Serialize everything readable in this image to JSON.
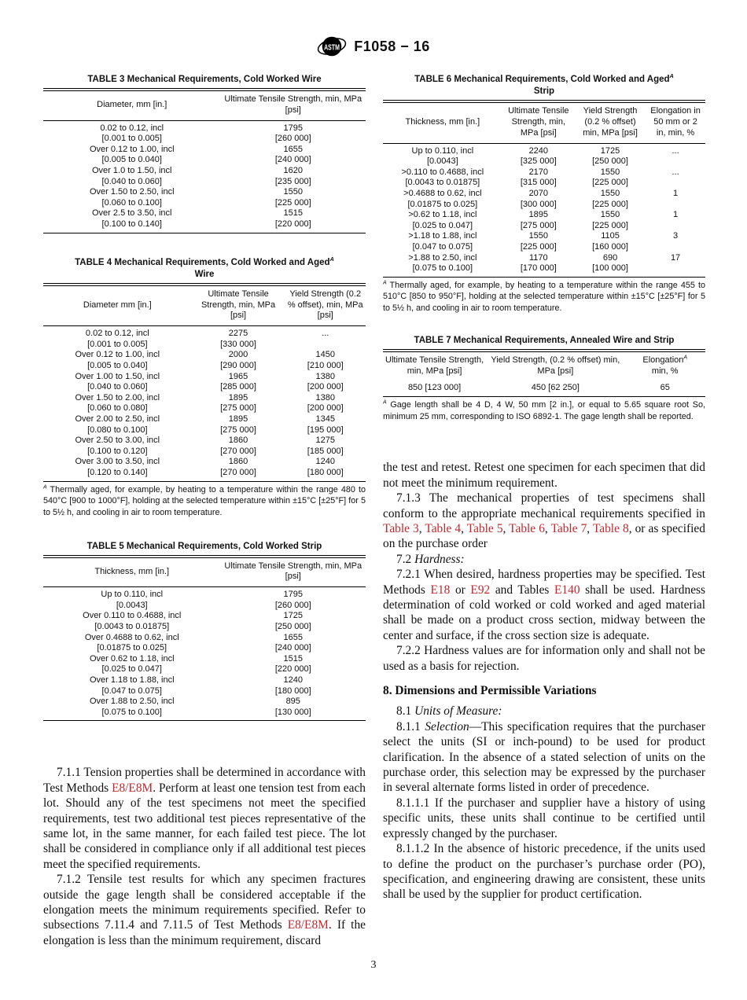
{
  "header": {
    "doc_code": "F1058 − 16"
  },
  "page_number": "3",
  "colors": {
    "link_red": "#c0282d",
    "text": "#111111"
  },
  "tables": {
    "table3": {
      "title": [
        {
          "t": "TABLE 3 Mechanical Requirements, Cold Worked Wire"
        }
      ],
      "widths": [
        "55%",
        "45%"
      ],
      "headers": [
        "Diameter, mm [in.]",
        "Ultimate Tensile Strength, min, MPa [psi]"
      ],
      "rows": [
        [
          "0.02 to 0.12, incl",
          "1795"
        ],
        [
          "[0.001 to 0.005]",
          "[260 000]"
        ],
        [
          "Over 0.12 to 1.00, incl",
          "1655"
        ],
        [
          "[0.005 to 0.040]",
          "[240 000]"
        ],
        [
          "Over 1.0 to 1.50, incl",
          "1620"
        ],
        [
          "[0.040 to 0.060]",
          "[235 000]"
        ],
        [
          "Over 1.50 to 2.50, incl",
          "1550"
        ],
        [
          "[0.060 to 0.100]",
          "[225 000]"
        ],
        [
          "Over 2.5 to 3.50, incl",
          "1515"
        ],
        [
          "[0.100 to 0.140]",
          "[220 000]"
        ]
      ]
    },
    "table4": {
      "title": [
        {
          "t": "TABLE 4 Mechanical Requirements, Cold Worked and Aged"
        },
        {
          "t": "A",
          "s": "supi"
        },
        {
          "br": true
        },
        {
          "t": "Wire"
        }
      ],
      "widths": [
        "46%",
        "29%",
        "25%"
      ],
      "headers": [
        "Diameter mm [in.]",
        "Ultimate Tensile Strength, min, MPa [psi]",
        "Yield Strength (0.2 % offset), min, MPa [psi]"
      ],
      "rows": [
        [
          "0.02 to 0.12, incl",
          "2275",
          "..."
        ],
        [
          "[0.001 to 0.005]",
          "[330 000]",
          ""
        ],
        [
          "Over 0.12 to 1.00, incl",
          "2000",
          "1450"
        ],
        [
          "[0.005 to 0.040]",
          "[290 000]",
          "[210 000]"
        ],
        [
          "Over 1.00 to 1.50, incl",
          "1965",
          "1380"
        ],
        [
          "[0.040 to 0.060]",
          "[285 000]",
          "[200 000]"
        ],
        [
          "Over 1.50 to 2.00, incl",
          "1895",
          "1380"
        ],
        [
          "[0.060 to 0.080]",
          "[275 000]",
          "[200 000]"
        ],
        [
          "Over 2.00 to 2.50, incl",
          "1895",
          "1345"
        ],
        [
          "[0.080 to 0.100]",
          "[275 000]",
          "[195 000]"
        ],
        [
          "Over 2.50 to 3.00, incl",
          "1860",
          "1275"
        ],
        [
          "[0.100 to 0.120]",
          "[270 000]",
          "[185 000]"
        ],
        [
          "Over 3.00 to 3.50, incl",
          "1860",
          "1240"
        ],
        [
          "[0.120 to 0.140]",
          "[270 000]",
          "[180 000]"
        ]
      ],
      "footnote": [
        {
          "t": "A",
          "s": "supi"
        },
        {
          "t": " Thermally aged, for example, by heating to a temperature within the range 480 to 540°C [900 to 1000°F], holding at the selected temperature within ±15°C [±25°F] for 5 to 5½ h, and cooling in air to room temperature."
        }
      ]
    },
    "table5": {
      "title": [
        {
          "t": "TABLE 5 Mechanical Requirements, Cold Worked Strip"
        }
      ],
      "widths": [
        "55%",
        "45%"
      ],
      "headers": [
        "Thickness, mm [in.]",
        "Ultimate Tensile Strength, min, MPa [psi]"
      ],
      "rows": [
        [
          "Up to 0.110, incl",
          "1795"
        ],
        [
          "[0.0043]",
          "[260 000]"
        ],
        [
          "Over 0.110 to 0.4688, incl",
          "1725"
        ],
        [
          "[0.0043 to 0.01875]",
          "[250 000]"
        ],
        [
          "Over 0.4688 to 0.62, incl",
          "1655"
        ],
        [
          "[0.01875 to 0.025]",
          "[240 000]"
        ],
        [
          "Over 0.62 to 1.18, incl",
          "1515"
        ],
        [
          "[0.025 to 0.047]",
          "[220 000]"
        ],
        [
          "Over 1.18 to 1.88, incl",
          "1240"
        ],
        [
          "[0.047 to 0.075]",
          "[180 000]"
        ],
        [
          "Over 1.88 to 2.50, incl",
          "895"
        ],
        [
          "[0.075 to 0.100]",
          "[130 000]"
        ]
      ]
    },
    "table6": {
      "title": [
        {
          "t": "TABLE 6 Mechanical Requirements, Cold Worked and Aged"
        },
        {
          "t": "A",
          "s": "supi"
        },
        {
          "br": true
        },
        {
          "t": "Strip"
        }
      ],
      "widths": [
        "37%",
        "22.5%",
        "22%",
        "18.5%"
      ],
      "headers": [
        "Thickness, mm [in.]",
        "Ultimate Tensile Strength, min, MPa [psi]",
        "Yield Strength (0.2 % offset) min, MPa [psi]",
        "Elongation in 50 mm or 2 in, min, %"
      ],
      "rows": [
        [
          "Up to 0.110, incl",
          "2240",
          "1725",
          "..."
        ],
        [
          "[0.0043]",
          "[325 000]",
          "[250 000]",
          ""
        ],
        [
          ">0.110 to 0.4688, incl",
          "2170",
          "1550",
          "..."
        ],
        [
          "[0.0043 to 0.01875]",
          "[315 000]",
          "[225 000]",
          ""
        ],
        [
          ">0.4688 to 0.62, incl",
          "2070",
          "1550",
          "1"
        ],
        [
          "[0.01875 to 0.025]",
          "[300 000]",
          "[225 000]",
          ""
        ],
        [
          ">0.62 to 1.18, incl",
          "1895",
          "1550",
          "1"
        ],
        [
          "[0.025 to 0.047]",
          "[275 000]",
          "[225 000]",
          ""
        ],
        [
          ">1.18 to 1.88, incl",
          "1550",
          "1105",
          "3"
        ],
        [
          "[0.047 to 0.075]",
          "[225 000]",
          "[160 000]",
          ""
        ],
        [
          ">1.88 to 2.50, incl",
          "1170",
          "690",
          "17"
        ],
        [
          "[0.075 to 0.100]",
          "[170 000]",
          "[100 000]",
          ""
        ]
      ],
      "footnote": [
        {
          "t": "A",
          "s": "supi"
        },
        {
          "t": " Thermally aged, for example, by heating to a temperature within the range 455 to 510°C [850 to 950°F], holding at the selected temperature within ±15°C [±25°F] for 5 to 5½ h, and cooling in air to room temperature."
        }
      ]
    },
    "table7": {
      "title": [
        {
          "t": "TABLE 7 Mechanical Requirements, Annealed Wire and Strip"
        }
      ],
      "widths": [
        "32%",
        "43%",
        "25%"
      ],
      "headers": [
        "Ultimate Tensile Strength, min, MPa [psi]",
        "Yield Strength, (0.2 % offset) min, MPa [psi]",
        [
          {
            "t": "Elongation"
          },
          {
            "t": "A",
            "s": "supi"
          },
          {
            "br": true
          },
          {
            "t": "min, %"
          }
        ]
      ],
      "rows": [
        [
          "850 [123 000]",
          "450 [62 250]",
          "65"
        ]
      ],
      "footnote": [
        {
          "t": "A",
          "s": "supi"
        },
        {
          "t": " Gage length shall be 4 D, 4 W, 50 mm [2 in.], or equal to 5.65 square root So, minimum 25 mm, corresponding to ISO 6892-1. The gage length shall be reported."
        }
      ]
    }
  },
  "columns": {
    "left": {
      "paragraphs": [
        {
          "cls": "indent",
          "segs": [
            {
              "t": "7.1.1  Tension properties shall be determined in accordance with Test Methods "
            },
            {
              "t": "E8/E8M",
              "s": "link"
            },
            {
              "t": ". Perform at least one tension test from each lot. Should any of the test specimens not meet the specified requirements, test two additional test pieces representative of the same lot, in the same manner, for each failed test piece. The lot shall be considered in compliance only if all additional test pieces meet the specified requirements."
            }
          ]
        },
        {
          "cls": "indent",
          "segs": [
            {
              "t": "7.1.2  Tensile test results for which any specimen fractures outside the gage length shall be considered acceptable if the elongation meets the minimum requirements specified. Refer to subsections 7.11.4 and 7.11.5 of Test Methods "
            },
            {
              "t": "E8/E8M",
              "s": "link"
            },
            {
              "t": ". If the elongation is less than the minimum requirement, discard"
            }
          ]
        }
      ]
    },
    "right": {
      "paragraphs": [
        {
          "cls": "",
          "segs": [
            {
              "t": "the test and retest. Retest one specimen for each specimen that did not meet the minimum requirement."
            }
          ]
        },
        {
          "cls": "indent",
          "segs": [
            {
              "t": "7.1.3  The mechanical properties of test specimens shall conform to the appropriate mechanical requirements specified in "
            },
            {
              "t": "Table 3",
              "s": "link"
            },
            {
              "t": ", "
            },
            {
              "t": "Table 4",
              "s": "link"
            },
            {
              "t": ", "
            },
            {
              "t": "Table 5",
              "s": "link"
            },
            {
              "t": ", "
            },
            {
              "t": "Table 6",
              "s": "link"
            },
            {
              "t": ", "
            },
            {
              "t": "Table 7",
              "s": "link"
            },
            {
              "t": ", "
            },
            {
              "t": "Table 8",
              "s": "link"
            },
            {
              "t": ", or as specified on the purchase order"
            }
          ]
        },
        {
          "cls": "indent",
          "segs": [
            {
              "t": "7.2 "
            },
            {
              "t": "Hardness:",
              "s": "i"
            }
          ]
        },
        {
          "cls": "indent",
          "segs": [
            {
              "t": "7.2.1  When desired, hardness properties may be specified. Test Methods "
            },
            {
              "t": "E18",
              "s": "link"
            },
            {
              "t": " or "
            },
            {
              "t": "E92",
              "s": "link"
            },
            {
              "t": " and Tables "
            },
            {
              "t": "E140",
              "s": "link"
            },
            {
              "t": " shall be used. Hardness determination of cold worked or cold worked and aged material shall be made on a product cross section, midway between the center and surface, if the cross section size is adequate."
            }
          ]
        },
        {
          "cls": "indent",
          "segs": [
            {
              "t": "7.2.2  Hardness values are for information only and shall not be used as a basis for rejection."
            }
          ]
        },
        {
          "cls": "heading",
          "segs": [
            {
              "t": "8.  Dimensions and Permissible Variations"
            }
          ]
        },
        {
          "cls": "indent",
          "segs": [
            {
              "t": "8.1 "
            },
            {
              "t": "Units of Measure:",
              "s": "i"
            }
          ]
        },
        {
          "cls": "indent",
          "segs": [
            {
              "t": "8.1.1 "
            },
            {
              "t": "Selection",
              "s": "i"
            },
            {
              "t": "—This specification requires that the purchaser select the units (SI or inch-pound) to be used for product clarification. In the absence of a stated selection of units on the purchase order, this selection may be expressed by the purchaser in several alternate forms listed in order of precedence."
            }
          ]
        },
        {
          "cls": "indent",
          "segs": [
            {
              "t": "8.1.1.1  If the purchaser and supplier have a history of using specific units, these units shall continue to be certified until expressly changed by the purchaser."
            }
          ]
        },
        {
          "cls": "indent",
          "segs": [
            {
              "t": "8.1.1.2  In the absence of historic precedence, if the units used to define the product on the purchaser’s purchase order (PO), specification, and engineering drawing are consistent, these units shall be used by the supplier for product certification."
            }
          ]
        }
      ]
    }
  }
}
